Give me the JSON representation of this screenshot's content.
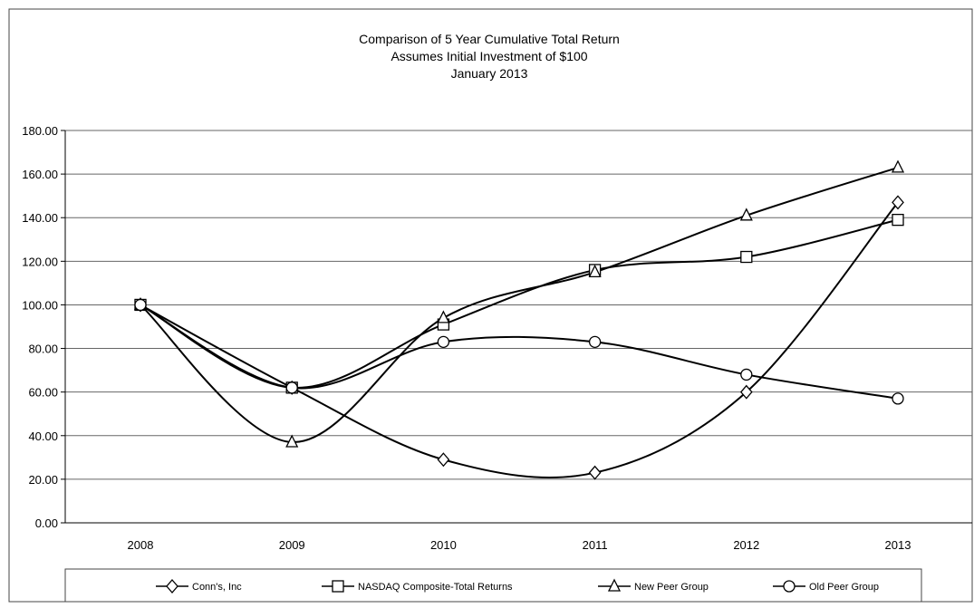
{
  "chart_data": {
    "type": "line",
    "title": "Comparison of 5 Year Cumulative Total Return",
    "subtitle_lines": [
      "Assumes Initial Investment of $100",
      "January 2013"
    ],
    "xlabel": "",
    "ylabel": "",
    "categories": [
      "2008",
      "2009",
      "2010",
      "2011",
      "2012",
      "2013"
    ],
    "ylim": [
      0,
      180
    ],
    "y_ticks": [
      "0.00",
      "20.00",
      "40.00",
      "60.00",
      "80.00",
      "100.00",
      "120.00",
      "140.00",
      "160.00",
      "180.00"
    ],
    "grid": true,
    "legend_position": "bottom",
    "series": [
      {
        "name": "Conn's, Inc",
        "marker": "diamond",
        "values": [
          100,
          62,
          29,
          23,
          60,
          147
        ],
        "color": "#000000"
      },
      {
        "name": "NASDAQ Composite-Total Returns",
        "marker": "square",
        "values": [
          100,
          62,
          91,
          116,
          122,
          139
        ],
        "color": "#000000"
      },
      {
        "name": "New Peer Group",
        "marker": "triangle",
        "values": [
          100,
          37,
          94,
          115,
          141,
          163
        ],
        "color": "#000000"
      },
      {
        "name": "Old Peer Group",
        "marker": "circle",
        "values": [
          100,
          62,
          83,
          83,
          68,
          57
        ],
        "color": "#000000"
      }
    ]
  }
}
